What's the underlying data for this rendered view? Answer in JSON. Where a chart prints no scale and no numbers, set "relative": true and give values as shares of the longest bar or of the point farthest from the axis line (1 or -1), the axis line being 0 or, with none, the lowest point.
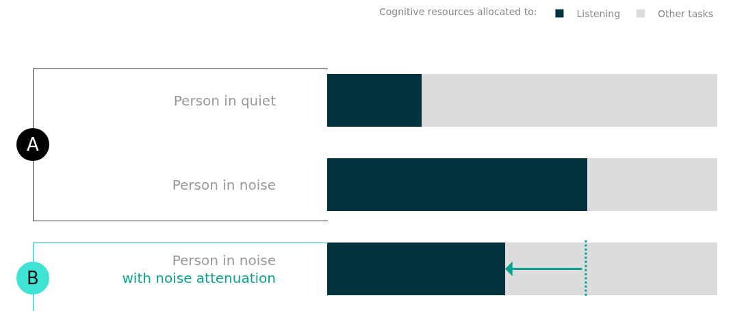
{
  "chart_data": {
    "type": "bar",
    "orientation": "horizontal",
    "stacked": true,
    "relative": true,
    "legend": "top right",
    "legend_title": "Cognitive resources allocated to:",
    "categories": [
      "Person in quiet",
      "Person in noise",
      "Person in noise\nwith noise attenuation"
    ],
    "series": [
      {
        "name": "Listening",
        "color": "#02323d",
        "values": [
          0.242,
          0.667,
          0.456
        ]
      },
      {
        "name": "Other tasks",
        "color": "#dcdcdc",
        "values": [
          0.758,
          0.333,
          0.544
        ]
      }
    ],
    "ref_lines": [
      {
        "axis": "x",
        "value": 0.663,
        "color": "#0aa391",
        "line_style": "dotted"
      }
    ],
    "annotations": [
      "A",
      "B"
    ]
  }
}
